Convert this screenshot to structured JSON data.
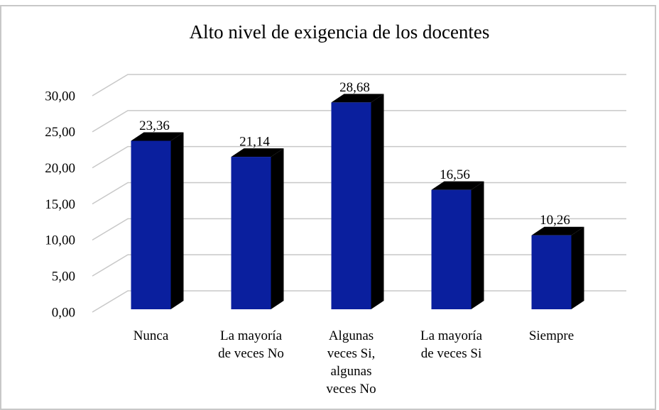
{
  "chart_data": {
    "type": "bar",
    "title": "Alto nivel de exigencia de los docentes",
    "categories": [
      "Nunca",
      "La mayoría de veces No",
      "Algunas veces Si, algunas veces No",
      "La mayoría de veces Si",
      "Siempre"
    ],
    "values": [
      23.36,
      21.14,
      28.68,
      16.56,
      10.26
    ],
    "value_labels": [
      "23,36",
      "21,14",
      "28,68",
      "16,56",
      "10,26"
    ],
    "color": "#0a1f9e",
    "ylim": [
      0,
      30
    ],
    "yticks": [
      {
        "value": 0,
        "label": "0,00"
      },
      {
        "value": 5,
        "label": "5,00"
      },
      {
        "value": 10,
        "label": "10,00"
      },
      {
        "value": 15,
        "label": "15,00"
      },
      {
        "value": 20,
        "label": "20,00"
      },
      {
        "value": 25,
        "label": "25,00"
      },
      {
        "value": 30,
        "label": "30,00"
      }
    ],
    "grid": true
  }
}
